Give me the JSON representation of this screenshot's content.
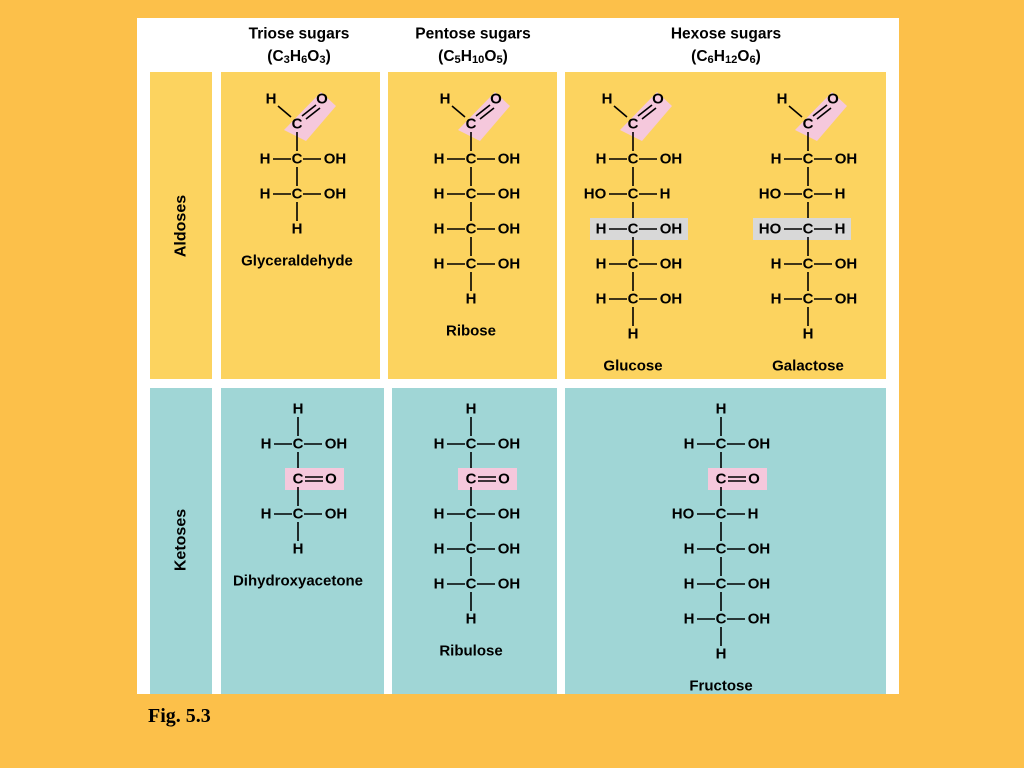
{
  "header": {
    "triose": {
      "title": "Triose sugars",
      "formula": "(C3H6O3)"
    },
    "pentose": {
      "title": "Pentose sugars",
      "formula": "(C5H10O5)"
    },
    "hexose": {
      "title": "Hexose sugars",
      "formula": "(C6H12O6)"
    }
  },
  "rows": {
    "aldoses": "Aldoses",
    "ketoses": "Ketoses"
  },
  "aldoses": [
    {
      "name": "Glyceraldehyde",
      "carbons": [
        [
          "H",
          "OH"
        ],
        [
          "H",
          "OH"
        ]
      ],
      "highlight": null
    },
    {
      "name": "Ribose",
      "carbons": [
        [
          "H",
          "OH"
        ],
        [
          "H",
          "OH"
        ],
        [
          "H",
          "OH"
        ],
        [
          "H",
          "OH"
        ]
      ],
      "highlight": null
    },
    {
      "name": "Glucose",
      "carbons": [
        [
          "H",
          "OH"
        ],
        [
          "HO",
          "H"
        ],
        [
          "H",
          "OH"
        ],
        [
          "H",
          "OH"
        ],
        [
          "H",
          "OH"
        ]
      ],
      "highlight": 3
    },
    {
      "name": "Galactose",
      "carbons": [
        [
          "H",
          "OH"
        ],
        [
          "HO",
          "H"
        ],
        [
          "HO",
          "H"
        ],
        [
          "H",
          "OH"
        ],
        [
          "H",
          "OH"
        ]
      ],
      "highlight": 3
    }
  ],
  "ketoses": [
    {
      "name": "Dihydroxyacetone",
      "after": [
        [
          "H",
          "OH"
        ]
      ]
    },
    {
      "name": "Ribulose",
      "after": [
        [
          "H",
          "OH"
        ],
        [
          "H",
          "OH"
        ],
        [
          "H",
          "OH"
        ]
      ]
    },
    {
      "name": "Fructose",
      "after": [
        [
          "HO",
          "H"
        ],
        [
          "H",
          "OH"
        ],
        [
          "H",
          "OH"
        ],
        [
          "H",
          "OH"
        ]
      ]
    }
  ],
  "atoms": {
    "c": "C",
    "h": "H",
    "o": "O",
    "ho": "HO",
    "oh": "OH"
  },
  "caption": "Fig. 5.3",
  "colors": {
    "background": "#fcc04a",
    "aldose_panel": "#fcd35f",
    "ketose_panel": "#a0d6d6",
    "carbonyl_highlight": "#f5c8dc",
    "config_highlight": "#d8d8d8"
  }
}
